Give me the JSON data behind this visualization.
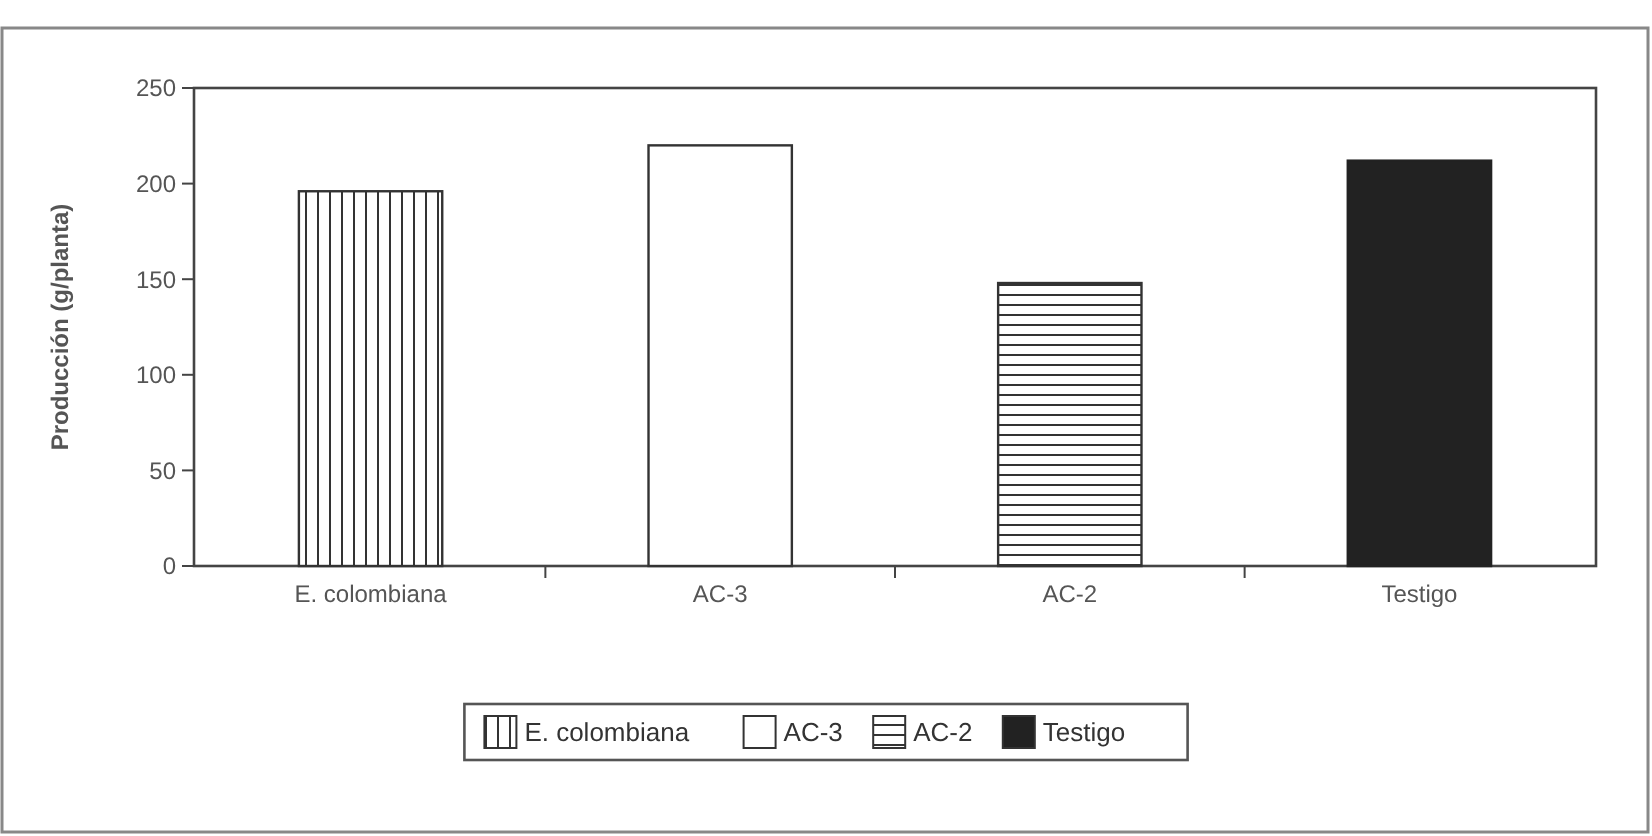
{
  "chart_data": {
    "type": "bar",
    "stacked": true,
    "ylabel": "Producción (g/planta)",
    "categories": [
      "E. colombiana",
      "AC-3",
      "AC-2",
      "Testigo"
    ],
    "series": [
      {
        "name": "E. colombiana",
        "color": "#333333",
        "values": [
          196,
          null,
          null,
          null
        ]
      },
      {
        "name": "AC-3",
        "color": "#ffffff",
        "values": [
          null,
          220,
          null,
          null
        ]
      },
      {
        "name": "AC-2",
        "color": "#333333",
        "values": [
          null,
          null,
          148,
          null
        ]
      },
      {
        "name": "Testigo",
        "color": "#222222",
        "values": [
          null,
          null,
          null,
          212
        ]
      }
    ],
    "ylim": [
      0,
      250
    ],
    "yticks": [
      0,
      50,
      100,
      150,
      200,
      250
    ],
    "grid": false,
    "legend": "bottom"
  }
}
